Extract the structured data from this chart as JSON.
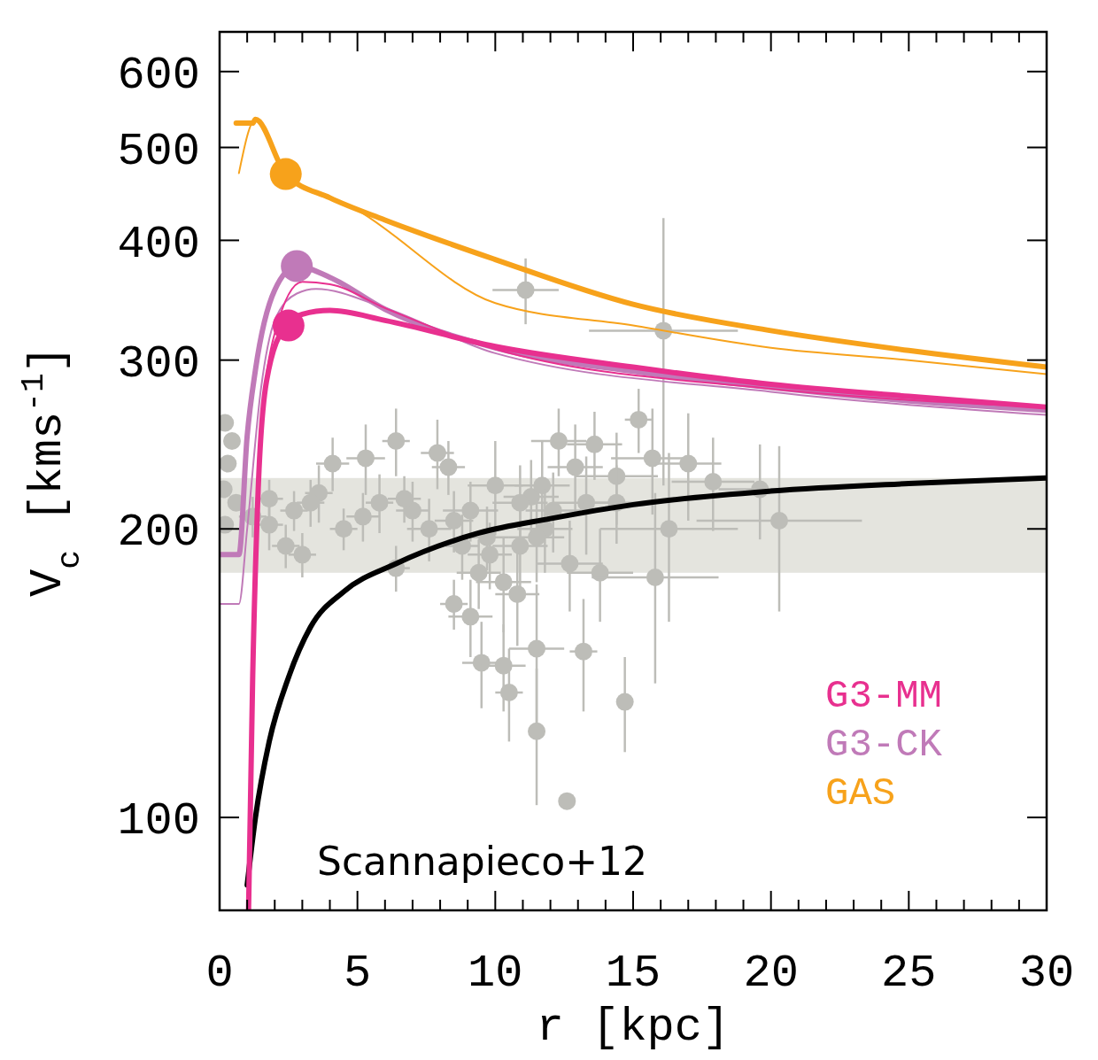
{
  "chart_data": {
    "type": "line",
    "xlabel": "r [kpc]",
    "ylabel": "V$_{c}$ [kms$^{-1}$]",
    "log": "y",
    "xlim": [
      0,
      30
    ],
    "ylim": [
      80,
      660
    ],
    "xticks": [
      0,
      {
        "value": 1,
        "label": null
      },
      {
        "value": 2,
        "label": null
      },
      {
        "value": 3,
        "label": null
      },
      {
        "value": 4,
        "label": null
      },
      5,
      {
        "value": 6,
        "label": null
      },
      {
        "value": 7,
        "label": null
      },
      {
        "value": 8,
        "label": null
      },
      {
        "value": 9,
        "label": null
      },
      10,
      {
        "value": 11,
        "label": null
      },
      {
        "value": 12,
        "label": null
      },
      {
        "value": 13,
        "label": null
      },
      {
        "value": 14,
        "label": null
      },
      15,
      {
        "value": 16,
        "label": null
      },
      {
        "value": 17,
        "label": null
      },
      {
        "value": 18,
        "label": null
      },
      {
        "value": 19,
        "label": null
      },
      20,
      {
        "value": 21,
        "label": null
      },
      {
        "value": 22,
        "label": null
      },
      {
        "value": 23,
        "label": null
      },
      {
        "value": 24,
        "label": null
      },
      25,
      {
        "value": 26,
        "label": null
      },
      {
        "value": 27,
        "label": null
      },
      {
        "value": 28,
        "label": null
      },
      {
        "value": 29,
        "label": null
      },
      30
    ],
    "yticks": [
      100,
      200,
      300,
      400,
      500,
      600
    ],
    "grid": false,
    "legend": "bottom right",
    "bands": [
      {
        "axis": "y",
        "from": 180,
        "to": 226,
        "color": "#e4e4de"
      }
    ],
    "annotations": [
      "Scannapieco+12"
    ],
    "series": [
      {
        "type": "scatter",
        "color": "#bdbdb8",
        "marker": "circle",
        "x": [
          0.2,
          0.45,
          0.3,
          0.15,
          0.2,
          0.6,
          1.2,
          1.8,
          2.4,
          3.0,
          3.6,
          4.1,
          4.5,
          5.3,
          5.8,
          6.4,
          6.4,
          7.0,
          7.9,
          8.3,
          8.5,
          8.8,
          8.5,
          9.1,
          9.4,
          9.7,
          10.0,
          10.3,
          9.5,
          10.3,
          10.5,
          10.8,
          10.9,
          11.1,
          11.3,
          11.5,
          11.5,
          11.7,
          11.8,
          12.3,
          12.6,
          12.7,
          12.9,
          13.2,
          13.3,
          13.6,
          13.8,
          14.4,
          14.4,
          15.2,
          14.7,
          15.7,
          15.8,
          16.1,
          16.3,
          17.0,
          17.9,
          19.6,
          20.3,
          1.8,
          2.7,
          3.3,
          5.2,
          6.7,
          7.6,
          9.1,
          10.9,
          12.1,
          11.5,
          9.8
        ],
        "values": [
          258,
          247,
          234,
          220,
          202,
          213,
          206,
          202,
          192,
          188,
          218,
          234,
          200,
          237,
          213,
          247,
          182,
          209,
          240,
          232,
          204,
          192,
          167,
          162,
          180,
          196,
          222,
          176,
          145,
          144,
          135,
          171,
          192,
          355,
          216,
          150,
          123,
          222,
          200,
          247,
          104,
          184,
          232,
          149,
          213,
          245,
          180,
          227,
          213,
          260,
          132,
          237,
          178,
          322,
          200,
          234,
          224,
          220,
          204,
          215,
          209,
          213,
          206,
          215,
          200,
          209,
          213,
          209,
          196,
          188
        ],
        "errors": [
          null,
          null,
          null,
          null,
          null,
          null,
          10,
          12,
          10,
          10,
          15,
          15,
          10,
          20,
          15,
          20,
          10,
          15,
          20,
          15,
          15,
          15,
          10,
          15,
          15,
          15,
          25,
          20,
          15,
          15,
          15,
          20,
          20,
          28,
          20,
          25,
          20,
          25,
          20,
          20,
          null,
          20,
          25,
          20,
          25,
          20,
          20,
          25,
          20,
          20,
          15,
          30,
          40,
          100,
          40,
          30,
          25,
          25,
          40,
          10,
          10,
          12,
          12,
          12,
          15,
          15,
          20,
          20,
          20,
          15
        ],
        "xerrors": [
          null,
          null,
          null,
          null,
          null,
          null,
          0.5,
          0.5,
          0.5,
          0.5,
          0.5,
          0.6,
          0.5,
          0.7,
          0.5,
          0.5,
          0.5,
          0.6,
          0.6,
          0.6,
          0.7,
          0.6,
          0.5,
          0.8,
          0.8,
          0.8,
          1.0,
          1.0,
          0.7,
          0.8,
          0.5,
          0.8,
          1.0,
          1.2,
          1.0,
          1.0,
          null,
          1.0,
          1.0,
          1.0,
          null,
          1.2,
          1.0,
          0.5,
          1.2,
          1.0,
          1.2,
          1.5,
          1.2,
          0.5,
          null,
          1.5,
          2.3,
          2.7,
          2.5,
          1.2,
          1.5,
          1.5,
          3.0,
          0.5,
          0.5,
          0.5,
          0.6,
          0.6,
          0.8,
          1.0,
          1.0,
          1.0,
          1.0,
          0.8
        ]
      },
      {
        "color": "#000000",
        "x": [
          1.0,
          1.3,
          1.8,
          2.5,
          3.3,
          4.5,
          6.4,
          9.4,
          12,
          15,
          20,
          25,
          30
        ],
        "values": [
          85,
          100,
          120,
          140,
          158,
          172,
          184,
          198,
          205,
          212,
          219,
          223,
          226
        ]
      },
      {
        "color": "#f7a21b",
        "x": [
          0.7,
          1.3,
          2.4,
          5,
          10,
          15,
          20,
          25,
          30
        ],
        "values": [
          470,
          535,
          470,
          430,
          344,
          326,
          309,
          300,
          290
        ]
      },
      {
        "color": "#f7a21b",
        "name": "GAS",
        "x": [
          0.6,
          1.2,
          1.3,
          2.4,
          4,
          6,
          10,
          15,
          20,
          25,
          30
        ],
        "values": [
          530,
          530,
          535,
          469,
          443,
          420,
          382,
          343,
          322,
          307,
          295
        ]
      },
      {
        "color": "#c07ab8",
        "x": [
          0,
          0.7,
          1.0,
          1.5,
          2,
          2.8,
          3.5,
          6,
          10,
          20,
          30
        ],
        "values": [
          167,
          167,
          200,
          280,
          330,
          352,
          356,
          340,
          305,
          278,
          263
        ]
      },
      {
        "color": "#c07ab8",
        "name": "G3-CK",
        "x": [
          0,
          0.7,
          1.0,
          1.3,
          2,
          2.8,
          4,
          6,
          10,
          15,
          20,
          25,
          30
        ],
        "values": [
          188,
          188,
          250,
          293,
          355,
          376,
          366,
          339,
          309,
          292,
          281,
          272,
          266
        ]
      },
      {
        "color": "#e8308f",
        "x": [
          1.05,
          1.3,
          1.5,
          2,
          3,
          4,
          6,
          10,
          20,
          30
        ],
        "values": [
          80,
          180,
          250,
          320,
          362,
          360,
          340,
          308,
          280,
          268
        ]
      },
      {
        "color": "#e8308f",
        "name": "G3-MM",
        "x": [
          1.05,
          1.2,
          1.4,
          1.7,
          2.4,
          3,
          4,
          6,
          10,
          15,
          20,
          25,
          30
        ],
        "values": [
          80,
          140,
          220,
          285,
          326,
          335,
          338,
          330,
          310,
          295,
          283,
          275,
          268
        ]
      },
      {
        "type": "scatter",
        "color": "#f7a21b",
        "marker": "circle",
        "x": [
          2.4
        ],
        "values": [
          469
        ]
      },
      {
        "type": "scatter",
        "color": "#c07ab8",
        "marker": "circle",
        "x": [
          2.8
        ],
        "values": [
          376
        ]
      },
      {
        "type": "scatter",
        "color": "#e8308f",
        "marker": "circle",
        "x": [
          2.5
        ],
        "values": [
          326
        ]
      }
    ]
  }
}
